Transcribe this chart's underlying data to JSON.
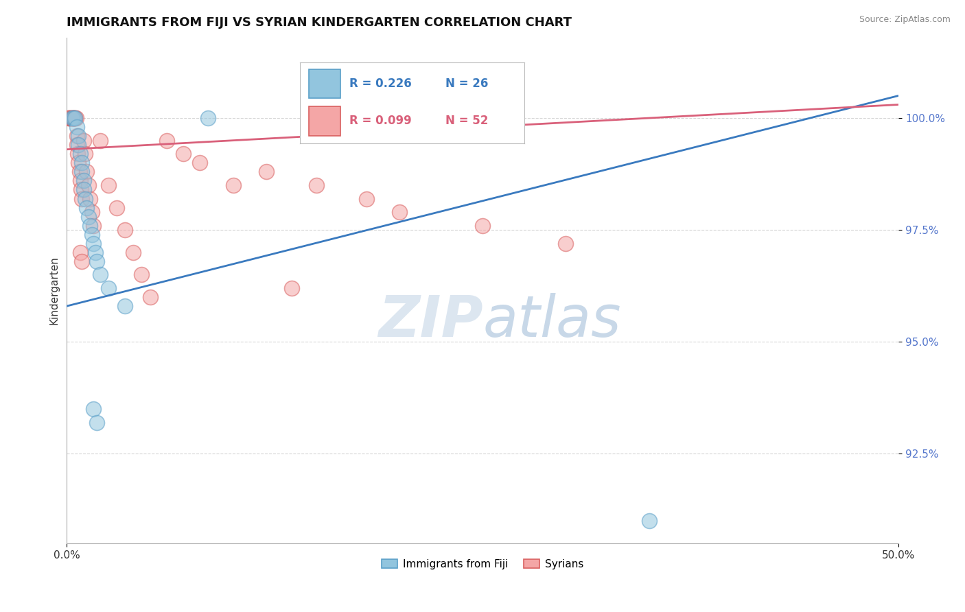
{
  "title": "IMMIGRANTS FROM FIJI VS SYRIAN KINDERGARTEN CORRELATION CHART",
  "source_text": "Source: ZipAtlas.com",
  "ylabel": "Kindergarten",
  "y_tick_labels": [
    "92.5%",
    "95.0%",
    "97.5%",
    "100.0%"
  ],
  "y_tick_values": [
    92.5,
    95.0,
    97.5,
    100.0
  ],
  "legend_fiji_label": "Immigrants from Fiji",
  "legend_syrians_label": "Syrians",
  "legend_fiji_r": "R = 0.226",
  "legend_fiji_n": "N = 26",
  "legend_syrians_r": "R = 0.099",
  "legend_syrians_n": "N = 52",
  "fiji_color": "#92c5de",
  "syrian_color": "#f4a6a6",
  "fiji_edge_color": "#5a9fc8",
  "syrian_edge_color": "#d96060",
  "fiji_line_color": "#3a7abf",
  "syrian_line_color": "#d9607a",
  "background_color": "#ffffff",
  "watermark_color": "#dce6f0",
  "grid_color": "#cccccc",
  "tick_color": "#5577cc",
  "fiji_x": [
    0.3,
    0.4,
    0.5,
    0.6,
    0.7,
    0.7,
    0.8,
    0.9,
    0.9,
    1.0,
    1.0,
    1.1,
    1.2,
    1.3,
    1.4,
    1.5,
    1.6,
    1.7,
    1.8,
    2.0,
    2.5,
    3.5,
    8.5,
    1.6,
    1.8,
    35.0
  ],
  "fiji_y": [
    100.0,
    100.0,
    100.0,
    99.8,
    99.6,
    99.4,
    99.2,
    99.0,
    98.8,
    98.6,
    98.4,
    98.2,
    98.0,
    97.8,
    97.6,
    97.4,
    97.2,
    97.0,
    96.8,
    96.5,
    96.2,
    95.8,
    100.0,
    93.5,
    93.2,
    91.0
  ],
  "syrian_x": [
    0.1,
    0.1,
    0.2,
    0.2,
    0.2,
    0.3,
    0.3,
    0.3,
    0.35,
    0.4,
    0.4,
    0.4,
    0.45,
    0.5,
    0.5,
    0.5,
    0.55,
    0.6,
    0.6,
    0.65,
    0.7,
    0.75,
    0.8,
    0.85,
    0.9,
    1.0,
    1.1,
    1.2,
    1.3,
    1.4,
    1.5,
    1.6,
    2.0,
    2.5,
    3.0,
    3.5,
    4.0,
    4.5,
    5.0,
    6.0,
    7.0,
    8.0,
    10.0,
    12.0,
    15.0,
    18.0,
    20.0,
    25.0,
    30.0,
    13.5,
    0.8,
    0.9
  ],
  "syrian_y": [
    100.0,
    100.0,
    100.0,
    100.0,
    100.0,
    100.0,
    100.0,
    100.0,
    100.0,
    100.0,
    100.0,
    100.0,
    100.0,
    100.0,
    100.0,
    100.0,
    100.0,
    99.6,
    99.4,
    99.2,
    99.0,
    98.8,
    98.6,
    98.4,
    98.2,
    99.5,
    99.2,
    98.8,
    98.5,
    98.2,
    97.9,
    97.6,
    99.5,
    98.5,
    98.0,
    97.5,
    97.0,
    96.5,
    96.0,
    99.5,
    99.2,
    99.0,
    98.5,
    98.8,
    98.5,
    98.2,
    97.9,
    97.6,
    97.2,
    96.2,
    97.0,
    96.8
  ],
  "xlim": [
    0.0,
    50.0
  ],
  "ylim": [
    90.5,
    101.8
  ],
  "fiji_line_x": [
    0.0,
    50.0
  ],
  "fiji_line_y": [
    95.8,
    100.5
  ],
  "syrian_line_x": [
    0.0,
    50.0
  ],
  "syrian_line_y": [
    99.3,
    100.3
  ]
}
